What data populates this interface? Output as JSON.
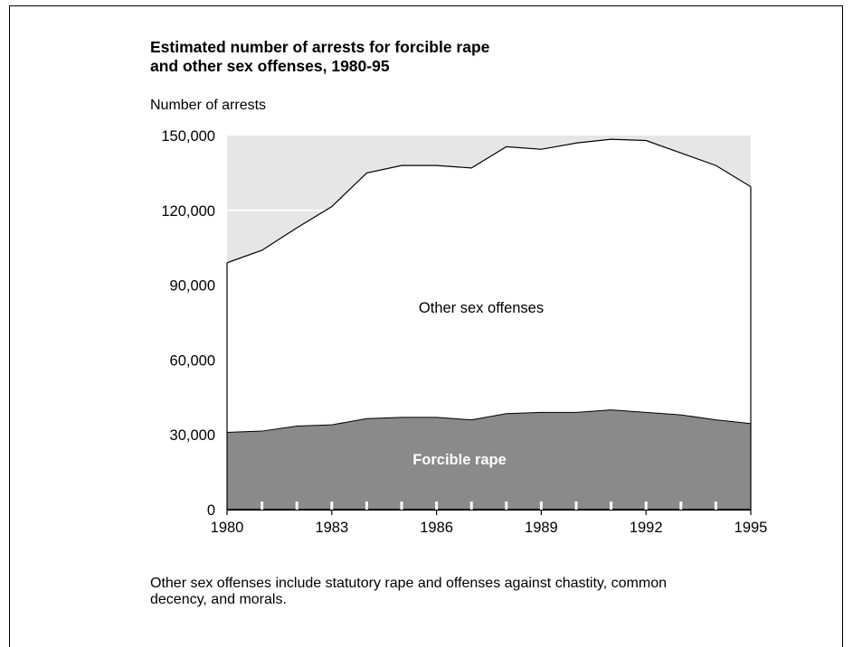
{
  "chart_data": {
    "type": "area",
    "title_line1": "Estimated number of arrests for forcible rape",
    "title_line2": "and other sex offenses, 1980-95",
    "ylabel": "Number of arrests",
    "xlabel": "",
    "x": [
      1980,
      1981,
      1982,
      1983,
      1984,
      1985,
      1986,
      1987,
      1988,
      1989,
      1990,
      1991,
      1992,
      1993,
      1994,
      1995
    ],
    "series": [
      {
        "name": "Forcible rape",
        "stacked_total": [
          31000,
          31500,
          33500,
          34000,
          36500,
          37000,
          37000,
          36000,
          38500,
          39000,
          39000,
          40000,
          39000,
          38000,
          36000,
          34500
        ]
      },
      {
        "name": "Other sex offenses",
        "stacked_total": [
          99000,
          104000,
          113000,
          121500,
          135000,
          138000,
          138000,
          137000,
          145500,
          144500,
          147000,
          148500,
          148000,
          143000,
          138000,
          129500
        ]
      }
    ],
    "xticks": [
      "1980",
      "1983",
      "1986",
      "1989",
      "1992",
      "1995"
    ],
    "yticks": [
      "0",
      "30,000",
      "60,000",
      "90,000",
      "120,000",
      "150,000"
    ],
    "ytick_values": [
      0,
      30000,
      60000,
      90000,
      120000,
      150000
    ],
    "ylim": [
      0,
      150000
    ],
    "xlim": [
      1980,
      1995
    ],
    "region_labels": {
      "upper": "Other sex offenses",
      "lower": "Forcible rape"
    },
    "colors": {
      "background_band": "#e6e6e6",
      "upper_fill": "#ffffff",
      "lower_fill": "#8a8a8a",
      "line": "#000000",
      "lower_label": "#ffffff"
    },
    "note": "Other sex offenses include statutory rape and offenses against chastity, common decency, and morals."
  }
}
